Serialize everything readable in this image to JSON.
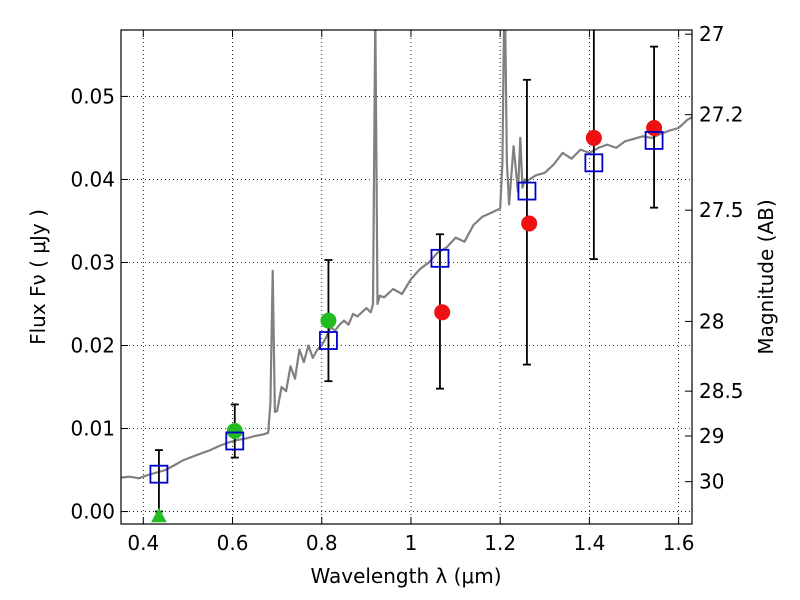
{
  "chart_data": {
    "type": "scatter",
    "title": "",
    "xlabel": "Wavelength  λ (μm)",
    "ylabel": "Flux  Fν ( μJy )",
    "y2label": "Magnitude (AB)",
    "xlim": [
      0.35,
      1.63
    ],
    "ylim": [
      -0.0015,
      0.058
    ],
    "grid": true,
    "x_ticks": [
      0.4,
      0.6,
      0.8,
      1.0,
      1.2,
      1.4,
      1.6
    ],
    "x_tick_labels": [
      "0.4",
      "0.6",
      "0.8",
      "1",
      "1.2",
      "1.4",
      "1.6"
    ],
    "y_ticks": [
      0.0,
      0.01,
      0.02,
      0.03,
      0.04,
      0.05
    ],
    "y_tick_labels": [
      "0.00",
      "0.01",
      "0.02",
      "0.03",
      "0.04",
      "0.05"
    ],
    "y2_ticks": [
      {
        "label": "27",
        "flux": 0.0575
      },
      {
        "label": "27.2",
        "flux": 0.0478
      },
      {
        "label": "27.5",
        "flux": 0.0363
      },
      {
        "label": "28",
        "flux": 0.0229
      },
      {
        "label": "28.5",
        "flux": 0.0145
      },
      {
        "label": "29",
        "flux": 0.0091
      },
      {
        "label": "30",
        "flux": 0.0036
      }
    ],
    "series": [
      {
        "name": "",
        "kind": "line",
        "color": "#808080",
        "x": [
          0.35,
          0.37,
          0.39,
          0.41,
          0.43,
          0.45,
          0.47,
          0.49,
          0.51,
          0.53,
          0.55,
          0.57,
          0.59,
          0.61,
          0.63,
          0.65,
          0.67,
          0.68,
          0.685,
          0.69,
          0.695,
          0.7,
          0.71,
          0.72,
          0.73,
          0.74,
          0.75,
          0.76,
          0.77,
          0.78,
          0.79,
          0.8,
          0.81,
          0.82,
          0.83,
          0.84,
          0.85,
          0.86,
          0.87,
          0.88,
          0.89,
          0.9,
          0.91,
          0.915,
          0.92,
          0.925,
          0.93,
          0.94,
          0.96,
          0.98,
          1.0,
          1.02,
          1.04,
          1.06,
          1.08,
          1.1,
          1.12,
          1.14,
          1.16,
          1.18,
          1.2,
          1.205,
          1.21,
          1.215,
          1.22,
          1.23,
          1.24,
          1.245,
          1.25,
          1.255,
          1.26,
          1.28,
          1.3,
          1.32,
          1.34,
          1.36,
          1.38,
          1.4,
          1.42,
          1.44,
          1.46,
          1.48,
          1.5,
          1.52,
          1.54,
          1.56,
          1.58,
          1.6,
          1.62,
          1.63
        ],
        "y": [
          0.0041,
          0.0042,
          0.004,
          0.0044,
          0.0047,
          0.005,
          0.0056,
          0.0062,
          0.0066,
          0.007,
          0.0074,
          0.0079,
          0.0083,
          0.0086,
          0.0088,
          0.0091,
          0.0093,
          0.0095,
          0.013,
          0.029,
          0.012,
          0.0121,
          0.015,
          0.0145,
          0.0175,
          0.016,
          0.0195,
          0.018,
          0.02,
          0.0185,
          0.0195,
          0.02,
          0.021,
          0.0222,
          0.0218,
          0.0225,
          0.023,
          0.0225,
          0.0238,
          0.0235,
          0.024,
          0.0245,
          0.024,
          0.025,
          0.06,
          0.025,
          0.026,
          0.0258,
          0.0268,
          0.0262,
          0.028,
          0.0292,
          0.03,
          0.0312,
          0.0318,
          0.033,
          0.0325,
          0.0345,
          0.0355,
          0.036,
          0.0365,
          0.042,
          0.065,
          0.042,
          0.037,
          0.044,
          0.0385,
          0.045,
          0.039,
          0.04,
          0.0398,
          0.0405,
          0.0408,
          0.0418,
          0.0432,
          0.0425,
          0.0436,
          0.0432,
          0.0438,
          0.0442,
          0.0438,
          0.0446,
          0.0449,
          0.0452,
          0.045,
          0.0455,
          0.0459,
          0.0462,
          0.0472,
          0.0475
        ]
      },
      {
        "name": "",
        "kind": "open-square",
        "color": "#0000cc",
        "x": [
          0.435,
          0.605,
          0.815,
          1.065,
          1.26,
          1.41,
          1.545
        ],
        "y": [
          0.0045,
          0.0085,
          0.0206,
          0.0305,
          0.0386,
          0.042,
          0.0447
        ]
      },
      {
        "name": "",
        "kind": "errorbar",
        "color": "#000000",
        "x": [
          0.435,
          0.605,
          0.815,
          1.065,
          1.26,
          1.41,
          1.545
        ],
        "y_low": [
          0.0,
          0.0065,
          0.0157,
          0.0148,
          0.0177,
          0.0304,
          0.0366
        ],
        "y_high": [
          0.0074,
          0.0129,
          0.0303,
          0.0334,
          0.052,
          0.06,
          0.056
        ]
      },
      {
        "name": "",
        "kind": "filled-circle",
        "color": "#22bb22",
        "x": [
          0.605,
          0.815
        ],
        "y": [
          0.0097,
          0.023
        ]
      },
      {
        "name": "",
        "kind": "filled-circle",
        "color": "#ee1111",
        "x": [
          1.07,
          1.265,
          1.41,
          1.545
        ],
        "y": [
          0.024,
          0.0347,
          0.045,
          0.0462
        ]
      },
      {
        "name": "",
        "kind": "triangle",
        "color": "#22bb22",
        "x": [
          0.435
        ],
        "y": [
          -0.0005
        ]
      }
    ]
  }
}
